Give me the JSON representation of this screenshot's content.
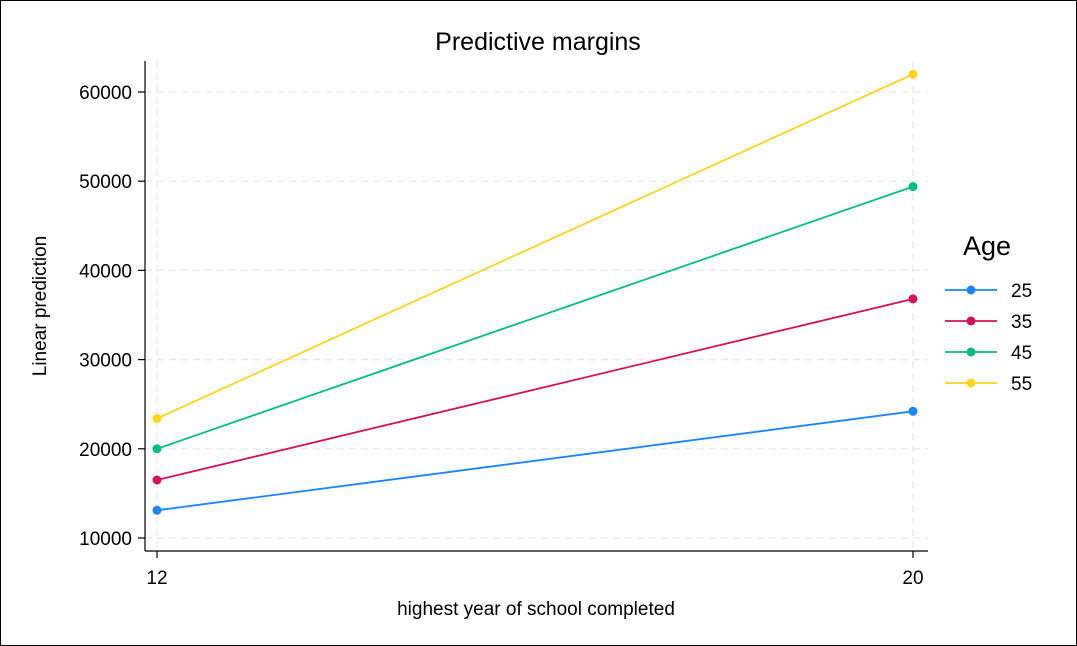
{
  "chart_data": {
    "type": "line",
    "title": "Predictive margins",
    "xlabel": "highest year of school completed",
    "ylabel": "Linear prediction",
    "x": [
      12,
      20
    ],
    "x_ticks": [
      12,
      20
    ],
    "y_ticks": [
      10000,
      20000,
      30000,
      40000,
      50000,
      60000
    ],
    "xlim": [
      11.95,
      20.2
    ],
    "ylim": [
      8500,
      63500
    ],
    "grid": true,
    "legend": {
      "title": "Age",
      "placement": "right"
    },
    "series": [
      {
        "name": "25",
        "color": "#1a85ff",
        "values": [
          13100,
          24200
        ]
      },
      {
        "name": "35",
        "color": "#d41159",
        "values": [
          16500,
          36800
        ]
      },
      {
        "name": "45",
        "color": "#00bf7d",
        "values": [
          20000,
          49400
        ]
      },
      {
        "name": "55",
        "color": "#ffd320",
        "values": [
          23400,
          62000
        ]
      }
    ]
  }
}
